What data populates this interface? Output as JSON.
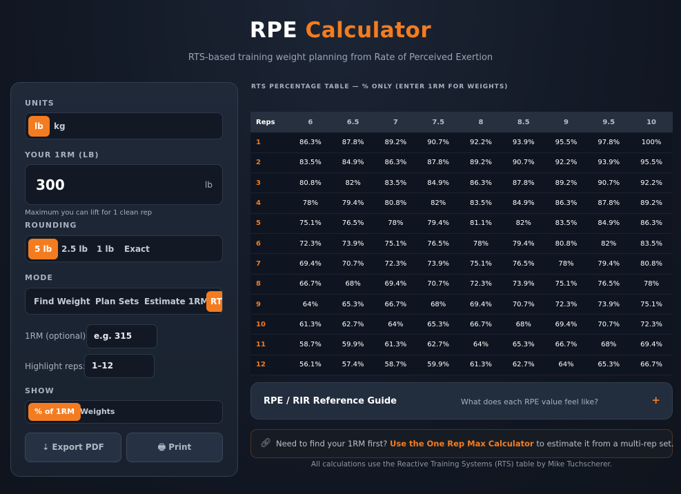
{
  "header": {
    "title_part1": "RPE",
    "title_part2": "Calculator",
    "subtitle": "RTS-based training weight planning from Rate of Perceived Exertion"
  },
  "panel": {
    "units": {
      "label": "UNITS",
      "options": [
        "lb",
        "kg"
      ],
      "selected": "lb"
    },
    "onerm": {
      "label": "YOUR 1RM (LB)",
      "value": "300",
      "unit": "lb",
      "helper": "Maximum you can lift for 1 clean rep"
    },
    "rounding": {
      "label": "ROUNDING",
      "options": [
        "5 lb",
        "2.5 lb",
        "1 lb",
        "Exact"
      ],
      "selected": "5 lb"
    },
    "mode": {
      "label": "MODE",
      "options": [
        "Find Weight",
        "Plan Sets",
        "Estimate 1RM",
        "RT"
      ],
      "selected": "RT"
    },
    "optional_1rm": {
      "label": "1RM (optional):",
      "placeholder": "e.g. 315"
    },
    "highlight": {
      "label": "Highlight reps:",
      "value": "1–12"
    },
    "show": {
      "label": "SHOW",
      "options": [
        "% of 1RM",
        "Weights"
      ],
      "selected": "% of 1RM"
    },
    "export_label": "⇣ Export PDF",
    "print_label": "🖶 Print"
  },
  "table": {
    "title": "RTS PERCENTAGE TABLE — % ONLY (ENTER 1RM FOR WEIGHTS)",
    "reps_header": "Reps",
    "rpe_headers": [
      "6",
      "6.5",
      "7",
      "7.5",
      "8",
      "8.5",
      "9",
      "9.5",
      "10"
    ],
    "rows": [
      {
        "reps": "1",
        "values": [
          "86.3%",
          "87.8%",
          "89.2%",
          "90.7%",
          "92.2%",
          "93.9%",
          "95.5%",
          "97.8%",
          "100%"
        ]
      },
      {
        "reps": "2",
        "values": [
          "83.5%",
          "84.9%",
          "86.3%",
          "87.8%",
          "89.2%",
          "90.7%",
          "92.2%",
          "93.9%",
          "95.5%"
        ]
      },
      {
        "reps": "3",
        "values": [
          "80.8%",
          "82%",
          "83.5%",
          "84.9%",
          "86.3%",
          "87.8%",
          "89.2%",
          "90.7%",
          "92.2%"
        ]
      },
      {
        "reps": "4",
        "values": [
          "78%",
          "79.4%",
          "80.8%",
          "82%",
          "83.5%",
          "84.9%",
          "86.3%",
          "87.8%",
          "89.2%"
        ]
      },
      {
        "reps": "5",
        "values": [
          "75.1%",
          "76.5%",
          "78%",
          "79.4%",
          "81.1%",
          "82%",
          "83.5%",
          "84.9%",
          "86.3%"
        ]
      },
      {
        "reps": "6",
        "values": [
          "72.3%",
          "73.9%",
          "75.1%",
          "76.5%",
          "78%",
          "79.4%",
          "80.8%",
          "82%",
          "83.5%"
        ]
      },
      {
        "reps": "7",
        "values": [
          "69.4%",
          "70.7%",
          "72.3%",
          "73.9%",
          "75.1%",
          "76.5%",
          "78%",
          "79.4%",
          "80.8%"
        ]
      },
      {
        "reps": "8",
        "values": [
          "66.7%",
          "68%",
          "69.4%",
          "70.7%",
          "72.3%",
          "73.9%",
          "75.1%",
          "76.5%",
          "78%"
        ]
      },
      {
        "reps": "9",
        "values": [
          "64%",
          "65.3%",
          "66.7%",
          "68%",
          "69.4%",
          "70.7%",
          "72.3%",
          "73.9%",
          "75.1%"
        ]
      },
      {
        "reps": "10",
        "values": [
          "61.3%",
          "62.7%",
          "64%",
          "65.3%",
          "66.7%",
          "68%",
          "69.4%",
          "70.7%",
          "72.3%"
        ]
      },
      {
        "reps": "11",
        "values": [
          "58.7%",
          "59.9%",
          "61.3%",
          "62.7%",
          "64%",
          "65.3%",
          "66.7%",
          "68%",
          "69.4%"
        ]
      },
      {
        "reps": "12",
        "values": [
          "56.1%",
          "57.4%",
          "58.7%",
          "59.9%",
          "61.3%",
          "62.7%",
          "64%",
          "65.3%",
          "66.7%"
        ]
      }
    ]
  },
  "guide": {
    "title": "RPE / RIR Reference Guide",
    "subtitle": "What does each RPE value feel like?",
    "toggle": "+"
  },
  "note": {
    "icon": "link-icon",
    "text_before": "Need to find your 1RM first?",
    "link": "Use the One Rep Max Calculator",
    "text_after": "to estimate it from a multi-rep set."
  },
  "footer": "All calculations use the Reactive Training Systems (RTS) table by Mike Tuchscherer.",
  "colors": {
    "accent": "#f47c20",
    "background": "#121824",
    "panel": "#1f2938"
  }
}
